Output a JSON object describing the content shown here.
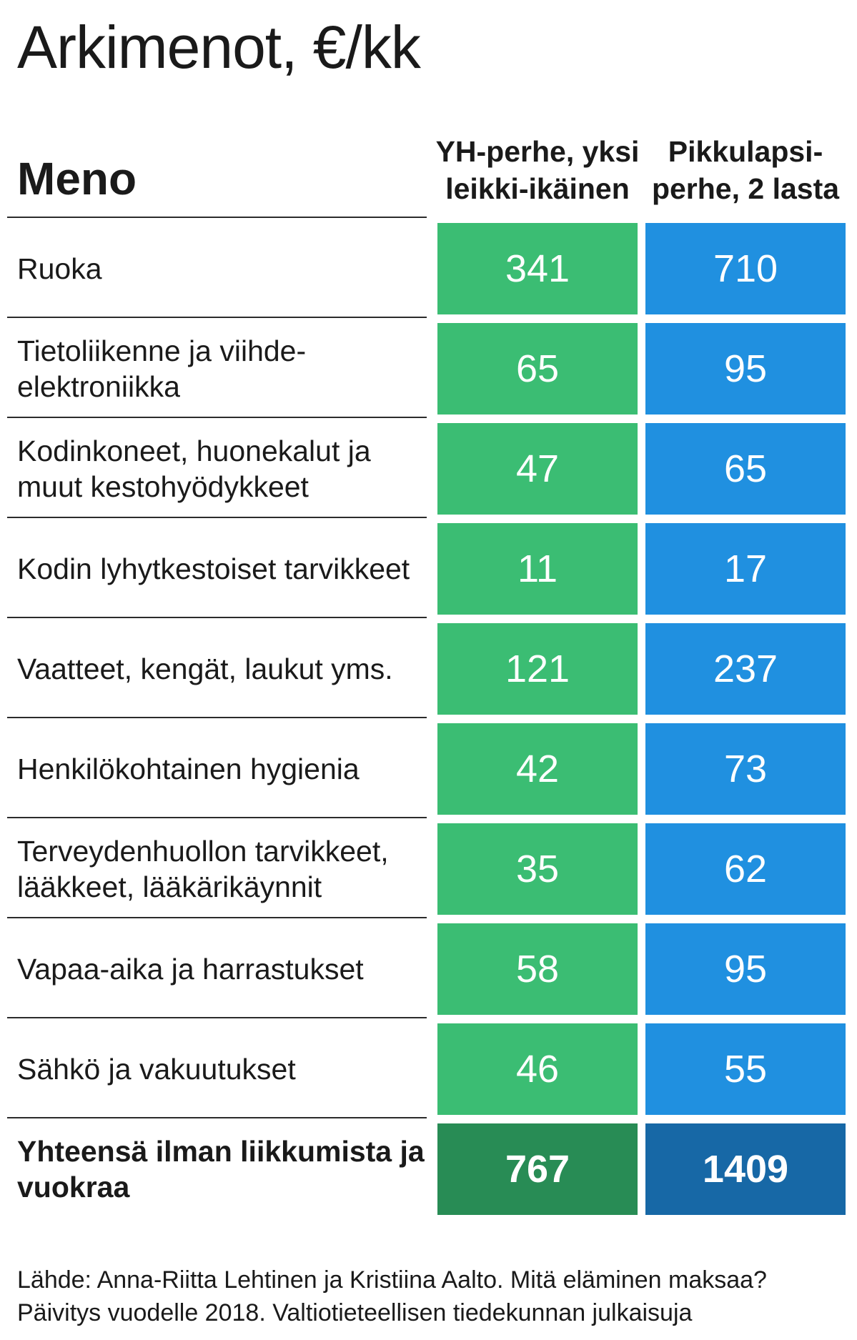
{
  "title": "Arkimenot, €/kk",
  "chart_data": {
    "type": "table",
    "title": "Arkimenot, €/kk",
    "header": {
      "row_label": "Meno",
      "columns": [
        "YH-perhe, yksi leikki-ikäinen",
        "Pikkulapsi-perhe, 2 lasta"
      ]
    },
    "rows": [
      {
        "label": "Ruoka",
        "values": [
          "341",
          "710"
        ]
      },
      {
        "label": "Tietoliikenne ja viihde-elektroniikka",
        "values": [
          "65",
          "95"
        ]
      },
      {
        "label": "Kodinkoneet, huonekalut ja muut kestohyödykkeet",
        "values": [
          "47",
          "65"
        ]
      },
      {
        "label": "Kodin lyhytkestoiset tarvikkeet",
        "values": [
          "11",
          "17"
        ]
      },
      {
        "label": "Vaatteet, kengät, laukut yms.",
        "values": [
          "121",
          "237"
        ]
      },
      {
        "label": "Henkilökohtainen hygienia",
        "values": [
          "42",
          "73"
        ]
      },
      {
        "label": "Terveydenhuollon tarvikkeet, lääkkeet, lääkärikäynnit",
        "values": [
          "35",
          "62"
        ]
      },
      {
        "label": "Vapaa-aika ja harrastukset",
        "values": [
          "58",
          "95"
        ]
      },
      {
        "label": "Sähkö ja vakuutukset",
        "values": [
          "46",
          "55"
        ]
      }
    ],
    "total": {
      "label": "Yhteensä ilman liikkumista ja vuokraa",
      "values": [
        "767",
        "1409"
      ]
    },
    "colors": {
      "col1": "#3bbd73",
      "col2": "#2090e0",
      "col1_total": "#288c55",
      "col2_total": "#1768a6"
    }
  },
  "source": "Lähde: Anna-Riitta Lehtinen ja Kristiina Aalto. Mitä eläminen maksaa? Päivitys vuodelle 2018. Valtiotieteellisen tiedekunnan julkaisuja"
}
